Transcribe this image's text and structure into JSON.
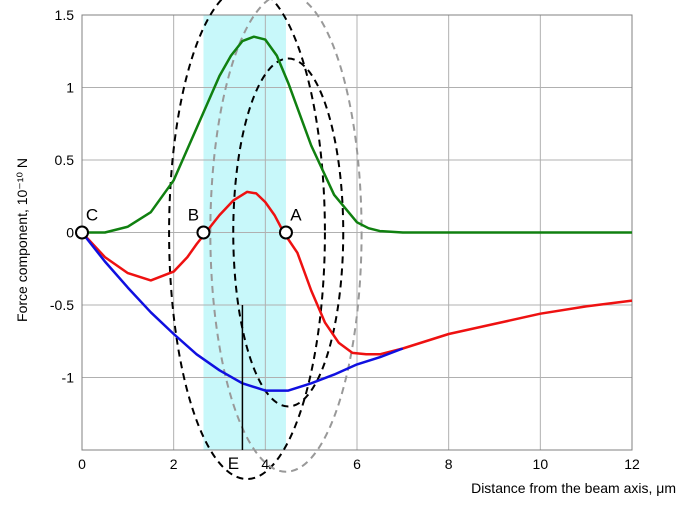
{
  "chart_data": {
    "type": "line",
    "xlabel": "Distance from the beam axis, μm",
    "ylabel": "Force component, 10⁻¹⁰ N",
    "xlim": [
      0,
      12
    ],
    "ylim": [
      -1.5,
      1.5
    ],
    "x_ticks": [
      "0",
      "2",
      "4",
      "6",
      "8",
      "10",
      "12"
    ],
    "y_ticks": [
      "1.5",
      "1",
      "0.5",
      "0",
      "-0.5",
      "-1"
    ],
    "grid": true,
    "highlight_band": {
      "x_from": 2.65,
      "x_to": 4.45,
      "color": "#c8f8fa"
    },
    "series": [
      {
        "color": "#108010",
        "x": [
          0,
          0.5,
          1,
          1.5,
          2,
          2.5,
          3,
          3.25,
          3.5,
          3.75,
          4,
          4.25,
          4.5,
          5,
          5.5,
          6,
          6.25,
          6.5,
          7,
          8,
          9,
          10,
          11,
          12
        ],
        "y": [
          0,
          0,
          0.04,
          0.14,
          0.36,
          0.72,
          1.08,
          1.22,
          1.32,
          1.35,
          1.33,
          1.22,
          1.03,
          0.6,
          0.26,
          0.07,
          0.03,
          0.01,
          0,
          0,
          0,
          0,
          0,
          0
        ]
      },
      {
        "color": "#ee1111",
        "x": [
          0,
          0.5,
          1,
          1.5,
          2,
          2.3,
          2.5,
          2.7,
          3,
          3.3,
          3.6,
          3.8,
          4,
          4.2,
          4.4,
          4.7,
          5,
          5.3,
          5.6,
          5.9,
          6.2,
          6.5,
          7,
          8,
          9,
          10,
          11,
          12
        ],
        "y": [
          0,
          -0.17,
          -0.28,
          -0.33,
          -0.27,
          -0.17,
          -0.08,
          0,
          0.12,
          0.22,
          0.28,
          0.27,
          0.21,
          0.12,
          0,
          -0.14,
          -0.4,
          -0.62,
          -0.76,
          -0.83,
          -0.84,
          -0.84,
          -0.8,
          -0.7,
          -0.63,
          -0.56,
          -0.51,
          -0.47
        ]
      },
      {
        "color": "#1010e0",
        "x": [
          0,
          0.5,
          1,
          1.5,
          2,
          2.5,
          3,
          3.5,
          4,
          4.5,
          5,
          5.5,
          6,
          6.5,
          7
        ],
        "y": [
          0,
          -0.2,
          -0.38,
          -0.55,
          -0.7,
          -0.84,
          -0.95,
          -1.04,
          -1.09,
          -1.09,
          -1.04,
          -0.98,
          -0.91,
          -0.86,
          -0.8
        ]
      }
    ],
    "circles": [
      {
        "cx": 3.6,
        "cy": 0,
        "r": 1.7,
        "color": "#000000",
        "dashed": true
      },
      {
        "cx": 4.5,
        "cy": 0,
        "r": 1.2,
        "color": "#000000",
        "dashed": true
      },
      {
        "cx": 4.45,
        "cy": 0,
        "r": 1.65,
        "color": "#999999",
        "dashed": true
      }
    ],
    "marked_points": [
      {
        "label": "C",
        "x": 0,
        "y": 0
      },
      {
        "label": "B",
        "x": 2.65,
        "y": 0
      },
      {
        "label": "A",
        "x": 4.45,
        "y": 0
      }
    ],
    "vertical_marker": {
      "label": "E",
      "x": 3.5,
      "y_from": -0.5,
      "y_to": -1.5
    }
  }
}
